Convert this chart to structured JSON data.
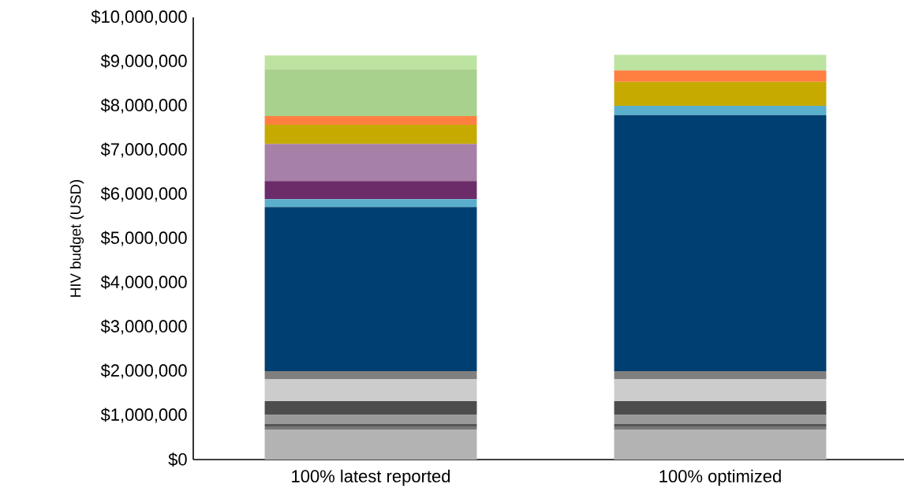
{
  "chart_data": {
    "type": "bar",
    "stacked": true,
    "ylabel": "HIV budget (USD)",
    "categories": [
      "100% latest reported",
      "100% optimized"
    ],
    "series": [
      {
        "color": "#b3b3b3",
        "values": [
          670000,
          670000
        ]
      },
      {
        "color": "#777777",
        "values": [
          80000,
          80000
        ]
      },
      {
        "color": "#555555",
        "values": [
          60000,
          60000
        ]
      },
      {
        "color": "#999999",
        "values": [
          200000,
          200000
        ]
      },
      {
        "color": "#4d4d4d",
        "values": [
          310000,
          310000
        ]
      },
      {
        "color": "#cccccc",
        "values": [
          500000,
          500000
        ]
      },
      {
        "color": "#808080",
        "values": [
          180000,
          180000
        ]
      },
      {
        "color": "#003f72",
        "values": [
          3710000,
          5790000
        ]
      },
      {
        "color": "#5aafcd",
        "values": [
          180000,
          210000
        ]
      },
      {
        "color": "#6c2c69",
        "values": [
          410000,
          0
        ]
      },
      {
        "color": "#a680a6",
        "values": [
          840000,
          0
        ]
      },
      {
        "color": "#c6aa00",
        "values": [
          430000,
          540000
        ]
      },
      {
        "color": "#ff7f41",
        "values": [
          200000,
          260000
        ]
      },
      {
        "color": "#a9d18e",
        "values": [
          1060000,
          0
        ]
      },
      {
        "color": "#bce3a0",
        "values": [
          310000,
          350000
        ]
      }
    ],
    "ylim": [
      0,
      10000000
    ],
    "yticks": [
      {
        "value": 0,
        "label": "$0"
      },
      {
        "value": 1000000,
        "label": "$1,000,000"
      },
      {
        "value": 2000000,
        "label": "$2,000,000"
      },
      {
        "value": 3000000,
        "label": "$3,000,000"
      },
      {
        "value": 4000000,
        "label": "$4,000,000"
      },
      {
        "value": 5000000,
        "label": "$5,000,000"
      },
      {
        "value": 6000000,
        "label": "$6,000,000"
      },
      {
        "value": 7000000,
        "label": "$7,000,000"
      },
      {
        "value": 8000000,
        "label": "$8,000,000"
      },
      {
        "value": 9000000,
        "label": "$9,000,000"
      },
      {
        "value": 10000000,
        "label": "$10,000,000"
      }
    ],
    "grid": false
  }
}
